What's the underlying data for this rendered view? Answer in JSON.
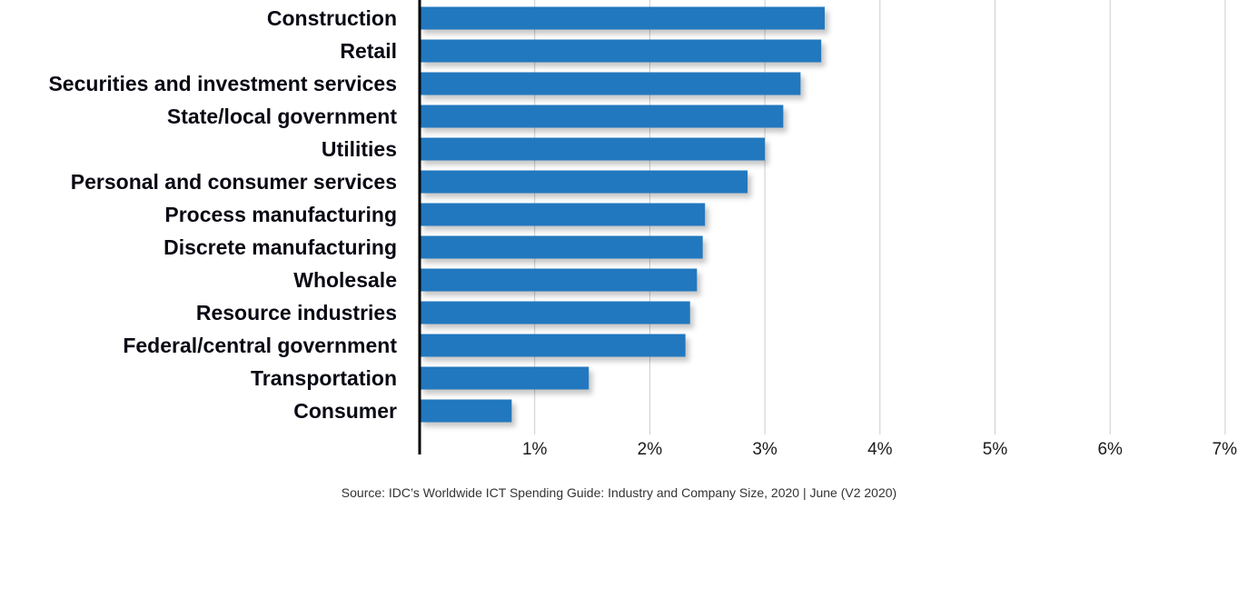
{
  "chart_data": {
    "type": "bar",
    "orientation": "horizontal",
    "categories": [
      "Construction",
      "Retail",
      "Securities and investment services",
      "State/local government",
      "Utilities",
      "Personal and consumer services",
      "Process manufacturing",
      "Discrete manufacturing",
      "Wholesale",
      "Resource industries",
      "Federal/central government",
      "Transportation",
      "Consumer"
    ],
    "values": [
      3.52,
      3.49,
      3.31,
      3.16,
      3.0,
      2.85,
      2.48,
      2.46,
      2.41,
      2.35,
      2.31,
      1.47,
      0.8
    ],
    "xlim": [
      0,
      7
    ],
    "xticks": [
      1,
      2,
      3,
      4,
      5,
      6,
      7
    ],
    "tick_labels": [
      "1%",
      "2%",
      "3%",
      "4%",
      "5%",
      "6%",
      "7%"
    ],
    "grid": true,
    "bar_color": "#2478be",
    "gridline_color": "#cccccc",
    "axis_color": "#000000"
  },
  "source": "Source: IDC’s Worldwide ICT Spending Guide: Industry and Company Size, 2020 | June (V2 2020)"
}
